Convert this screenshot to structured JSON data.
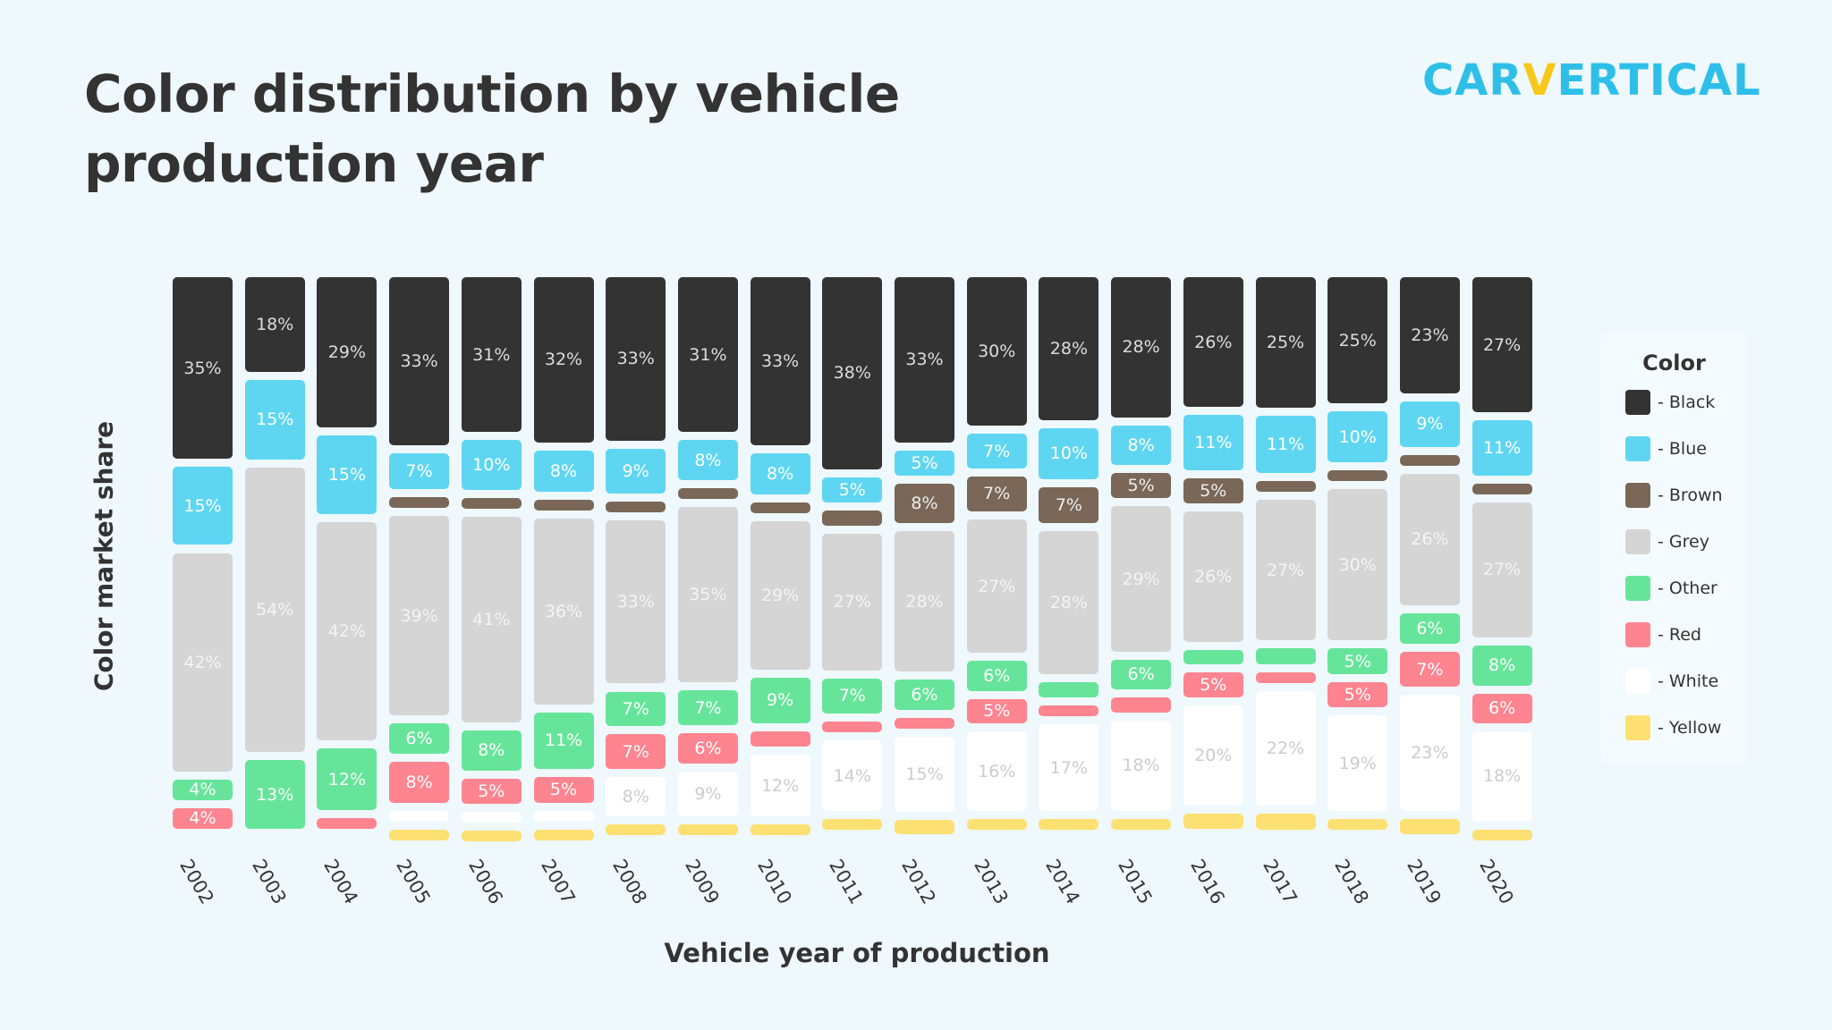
{
  "title_line1": "Color distribution by vehicle",
  "title_line2": "production year",
  "logo": {
    "part1": "CAR",
    "part2": "V",
    "part3": "ERTICAL"
  },
  "chart_data": {
    "type": "bar",
    "stacked": true,
    "xlabel": "Vehicle year of production",
    "ylabel": "Color market share",
    "legend_title": "Color",
    "legend_position": "right",
    "grid": false,
    "categories": [
      "2002",
      "2003",
      "2004",
      "2005",
      "2006",
      "2007",
      "2008",
      "2009",
      "2010",
      "2011",
      "2012",
      "2013",
      "2014",
      "2015",
      "2016",
      "2017",
      "2018",
      "2019",
      "2020"
    ],
    "series": [
      {
        "name": "Black",
        "legend_label": "- Black",
        "color": "#333333",
        "text_color": "#dddddd",
        "values": [
          35,
          18,
          29,
          33,
          31,
          32,
          33,
          31,
          33,
          38,
          33,
          30,
          28,
          28,
          26,
          25,
          25,
          23,
          27
        ],
        "labels": [
          "35%",
          "18%",
          "29%",
          "33%",
          "31%",
          "32%",
          "33%",
          "31%",
          "33%",
          "38%",
          "33%",
          "30%",
          "28%",
          "28%",
          "26%",
          "25%",
          "25%",
          "23%",
          "27%"
        ]
      },
      {
        "name": "Blue",
        "legend_label": "- Blue",
        "color": "#5fd6f1",
        "text_color": "#ffffff",
        "values": [
          15,
          15,
          15,
          7,
          10,
          8,
          9,
          8,
          8,
          5,
          5,
          7,
          10,
          8,
          11,
          11,
          10,
          9,
          11
        ],
        "labels": [
          "15%",
          "15%",
          "15%",
          "7%",
          "10%",
          "8%",
          "9%",
          "8%",
          "8%",
          "5%",
          "5%",
          "7%",
          "10%",
          "8%",
          "11%",
          "11%",
          "10%",
          "9%",
          "11%"
        ]
      },
      {
        "name": "Brown",
        "legend_label": "- Brown",
        "color": "#7a6757",
        "text_color": "#eeeeee",
        "values": [
          0,
          0,
          0,
          1,
          1,
          1,
          2,
          2,
          2,
          3,
          8,
          7,
          7,
          5,
          5,
          2,
          2,
          1,
          1
        ],
        "labels": [
          "",
          "",
          "",
          "",
          "",
          "",
          "",
          "",
          "",
          "",
          "8%",
          "7%",
          "7%",
          "5%",
          "5%",
          "",
          "",
          "",
          ""
        ]
      },
      {
        "name": "Grey",
        "legend_label": "- Grey",
        "color": "#d5d5d5",
        "text_color": "#f4f4f4",
        "values": [
          42,
          54,
          42,
          39,
          41,
          36,
          33,
          35,
          29,
          27,
          28,
          27,
          28,
          29,
          26,
          27,
          30,
          26,
          27
        ],
        "labels": [
          "42%",
          "54%",
          "42%",
          "39%",
          "41%",
          "36%",
          "33%",
          "35%",
          "29%",
          "27%",
          "28%",
          "27%",
          "28%",
          "29%",
          "26%",
          "27%",
          "30%",
          "26%",
          "27%"
        ]
      },
      {
        "name": "Other",
        "legend_label": "- Other",
        "color": "#66e59a",
        "text_color": "#ffffff",
        "values": [
          4,
          13,
          12,
          6,
          8,
          11,
          7,
          7,
          9,
          7,
          6,
          6,
          3,
          6,
          3,
          3,
          5,
          6,
          8
        ],
        "labels": [
          "4%",
          "13%",
          "12%",
          "6%",
          "8%",
          "11%",
          "7%",
          "7%",
          "9%",
          "7%",
          "6%",
          "6%",
          "",
          "6%",
          "",
          "",
          "5%",
          "6%",
          "8%"
        ]
      },
      {
        "name": "Red",
        "legend_label": "- Red",
        "color": "#fe8490",
        "text_color": "#ffffff",
        "values": [
          4,
          0,
          2,
          8,
          5,
          5,
          7,
          6,
          3,
          2,
          1,
          5,
          2,
          3,
          5,
          2,
          5,
          7,
          6
        ],
        "labels": [
          "4%",
          "",
          "",
          "8%",
          "5%",
          "5%",
          "7%",
          "6%",
          "",
          "",
          "",
          "5%",
          "",
          "",
          "5%",
          "",
          "5%",
          "7%",
          "6%"
        ]
      },
      {
        "name": "White",
        "legend_label": "- White",
        "color": "#ffffff",
        "text_color": "#cccccc",
        "values": [
          0,
          0,
          0,
          1,
          1,
          2,
          8,
          9,
          12,
          14,
          15,
          16,
          17,
          18,
          20,
          22,
          19,
          23,
          18
        ],
        "labels": [
          "",
          "",
          "",
          "",
          "",
          "",
          "8%",
          "9%",
          "12%",
          "14%",
          "15%",
          "16%",
          "17%",
          "18%",
          "20%",
          "22%",
          "19%",
          "23%",
          "18%"
        ]
      },
      {
        "name": "Yellow",
        "legend_label": "- Yellow",
        "color": "#fde072",
        "text_color": "#ffffff",
        "values": [
          0,
          0,
          0,
          2,
          2,
          1,
          1,
          1,
          1,
          2,
          3,
          2,
          2,
          2,
          3,
          3,
          2,
          3,
          1
        ],
        "labels": [
          "",
          "",
          "",
          "",
          "",
          "",
          "",
          "",
          "",
          "",
          "",
          "",
          "",
          "",
          "",
          "",
          "",
          "",
          ""
        ]
      }
    ]
  }
}
